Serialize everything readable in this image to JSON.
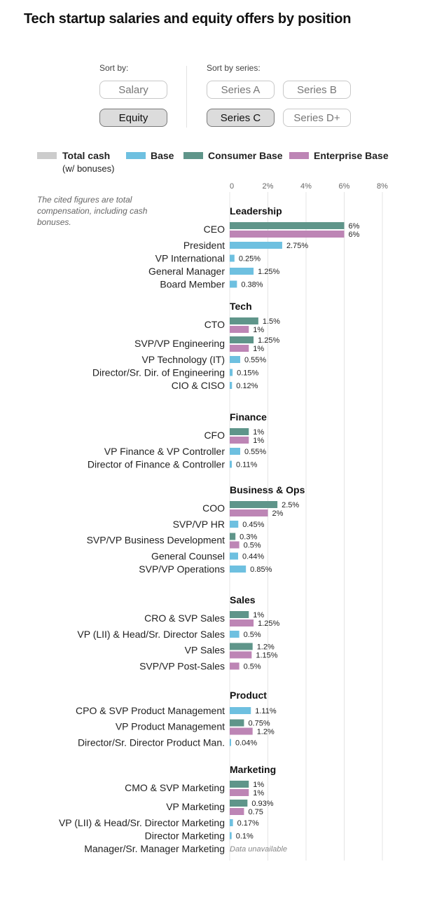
{
  "title": "Tech startup salaries and equity offers by position",
  "controls": {
    "sort_by_label": "Sort by:",
    "sort_by_options": [
      {
        "label": "Salary",
        "active": false
      },
      {
        "label": "Equity",
        "active": true
      }
    ],
    "sort_by_series_label": "Sort by series:",
    "series_options": [
      {
        "label": "Series A",
        "active": false
      },
      {
        "label": "Series B",
        "active": false
      },
      {
        "label": "Series C",
        "active": true
      },
      {
        "label": "Series D+",
        "active": false
      }
    ]
  },
  "legend": [
    {
      "label": "Total cash",
      "sublabel": "(w/ bonuses)",
      "color": "#cccccc"
    },
    {
      "label": "Base",
      "color": "#6ec0e0"
    },
    {
      "label": "Consumer Base",
      "color": "#5f958a"
    },
    {
      "label": "Enterprise Base",
      "color": "#bd85b5"
    }
  ],
  "note": "The cited figures are total compensation, including cash bonuses.",
  "chart_data": {
    "type": "bar",
    "orientation": "horizontal",
    "x_ticks": [
      "0",
      "2%",
      "4%",
      "6%",
      "8%"
    ],
    "xlim": [
      0,
      8
    ],
    "grid": true,
    "colors": {
      "base": "#6ec0e0",
      "consumer": "#5f958a",
      "enterprise": "#bd85b5"
    },
    "unavailable_label": "Data unavailable",
    "groups": [
      {
        "name": "Leadership",
        "rows": [
          {
            "label": "CEO",
            "bars": [
              {
                "series": "consumer",
                "value": 6,
                "text": "6%"
              },
              {
                "series": "enterprise",
                "value": 6,
                "text": "6%"
              }
            ]
          },
          {
            "label": "President",
            "bars": [
              {
                "series": "base",
                "value": 2.75,
                "text": "2.75%"
              }
            ]
          },
          {
            "label": "VP International",
            "bars": [
              {
                "series": "base",
                "value": 0.25,
                "text": "0.25%"
              }
            ]
          },
          {
            "label": "General Manager",
            "bars": [
              {
                "series": "base",
                "value": 1.25,
                "text": "1.25%"
              }
            ]
          },
          {
            "label": "Board Member",
            "bars": [
              {
                "series": "base",
                "value": 0.38,
                "text": "0.38%"
              }
            ]
          }
        ]
      },
      {
        "name": "Tech",
        "rows": [
          {
            "label": "CTO",
            "bars": [
              {
                "series": "consumer",
                "value": 1.5,
                "text": "1.5%"
              },
              {
                "series": "enterprise",
                "value": 1,
                "text": "1%"
              }
            ]
          },
          {
            "label": "SVP/VP Engineering",
            "bars": [
              {
                "series": "consumer",
                "value": 1.25,
                "text": "1.25%"
              },
              {
                "series": "enterprise",
                "value": 1,
                "text": "1%"
              }
            ]
          },
          {
            "label": "VP Technology (IT)",
            "bars": [
              {
                "series": "base",
                "value": 0.55,
                "text": "0.55%"
              }
            ]
          },
          {
            "label": "Director/Sr. Dir. of Engineering",
            "bars": [
              {
                "series": "base",
                "value": 0.15,
                "text": "0.15%"
              }
            ]
          },
          {
            "label": "CIO & CISO",
            "bars": [
              {
                "series": "base",
                "value": 0.12,
                "text": "0.12%"
              }
            ]
          }
        ]
      },
      {
        "name": "Finance",
        "rows": [
          {
            "label": "CFO",
            "bars": [
              {
                "series": "consumer",
                "value": 1,
                "text": "1%"
              },
              {
                "series": "enterprise",
                "value": 1,
                "text": "1%"
              }
            ]
          },
          {
            "label": "VP Finance & VP Controller",
            "bars": [
              {
                "series": "base",
                "value": 0.55,
                "text": "0.55%"
              }
            ]
          },
          {
            "label": "Director of Finance & Controller",
            "bars": [
              {
                "series": "base",
                "value": 0.11,
                "text": "0.11%"
              }
            ]
          }
        ]
      },
      {
        "name": "Business & Ops",
        "rows": [
          {
            "label": "COO",
            "bars": [
              {
                "series": "consumer",
                "value": 2.5,
                "text": "2.5%"
              },
              {
                "series": "enterprise",
                "value": 2,
                "text": "2%"
              }
            ]
          },
          {
            "label": "SVP/VP HR",
            "bars": [
              {
                "series": "base",
                "value": 0.45,
                "text": "0.45%"
              }
            ]
          },
          {
            "label": "SVP/VP Business Development",
            "bars": [
              {
                "series": "consumer",
                "value": 0.3,
                "text": "0.3%"
              },
              {
                "series": "enterprise",
                "value": 0.5,
                "text": "0.5%"
              }
            ]
          },
          {
            "label": "General Counsel",
            "bars": [
              {
                "series": "base",
                "value": 0.44,
                "text": "0.44%"
              }
            ]
          },
          {
            "label": "SVP/VP Operations",
            "bars": [
              {
                "series": "base",
                "value": 0.85,
                "text": "0.85%"
              }
            ]
          }
        ]
      },
      {
        "name": "Sales",
        "rows": [
          {
            "label": "CRO & SVP Sales",
            "bars": [
              {
                "series": "consumer",
                "value": 1,
                "text": "1%"
              },
              {
                "series": "enterprise",
                "value": 1.25,
                "text": "1.25%"
              }
            ]
          },
          {
            "label": "VP (LII) & Head/Sr. Director Sales",
            "bars": [
              {
                "series": "base",
                "value": 0.5,
                "text": "0.5%"
              }
            ]
          },
          {
            "label": "VP Sales",
            "bars": [
              {
                "series": "consumer",
                "value": 1.2,
                "text": "1.2%"
              },
              {
                "series": "enterprise",
                "value": 1.15,
                "text": "1.15%"
              }
            ]
          },
          {
            "label": "SVP/VP Post-Sales",
            "bars": [
              {
                "series": "enterprise",
                "value": 0.5,
                "text": "0.5%"
              }
            ]
          }
        ]
      },
      {
        "name": "Product",
        "rows": [
          {
            "label": "CPO & SVP Product Management",
            "bars": [
              {
                "series": "base",
                "value": 1.11,
                "text": "1.11%"
              }
            ]
          },
          {
            "label": "VP Product Management",
            "bars": [
              {
                "series": "consumer",
                "value": 0.75,
                "text": "0.75%"
              },
              {
                "series": "enterprise",
                "value": 1.2,
                "text": "1.2%"
              }
            ]
          },
          {
            "label": "Director/Sr. Director Product Man.",
            "bars": [
              {
                "series": "base",
                "value": 0.04,
                "text": "0.04%"
              }
            ]
          }
        ]
      },
      {
        "name": "Marketing",
        "rows": [
          {
            "label": "CMO & SVP Marketing",
            "bars": [
              {
                "series": "consumer",
                "value": 1,
                "text": "1%"
              },
              {
                "series": "enterprise",
                "value": 1,
                "text": "1%"
              }
            ]
          },
          {
            "label": "VP Marketing",
            "bars": [
              {
                "series": "consumer",
                "value": 0.93,
                "text": "0.93%"
              },
              {
                "series": "enterprise",
                "value": 0.75,
                "text": "0.75"
              }
            ]
          },
          {
            "label": "VP (LII) & Head/Sr. Director Marketing",
            "bars": [
              {
                "series": "base",
                "value": 0.17,
                "text": "0.17%"
              }
            ]
          },
          {
            "label": "Director Marketing",
            "bars": [
              {
                "series": "base",
                "value": 0.1,
                "text": "0.1%"
              }
            ]
          },
          {
            "label": "Manager/Sr. Manager Marketing",
            "bars": [],
            "unavailable": true
          }
        ]
      }
    ]
  }
}
